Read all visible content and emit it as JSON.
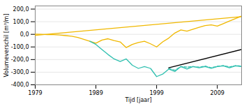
{
  "chart_data": {
    "type": "line",
    "xlabel": "Tijd [jaar]",
    "ylabel": "Volumeverschil [m³/m]",
    "xlim": [
      1979,
      2013
    ],
    "ylim": [
      -400,
      225
    ],
    "xticks": [
      1979,
      1989,
      1999,
      2009
    ],
    "yticks": [
      {
        "value": -400,
        "label": "-400,0"
      },
      {
        "value": -300,
        "label": "-300,0"
      },
      {
        "value": -200,
        "label": "-200,0"
      },
      {
        "value": -100,
        "label": "-100,0"
      },
      {
        "value": 0,
        "label": "0,0"
      },
      {
        "value": 100,
        "label": "100,0"
      },
      {
        "value": 200,
        "label": "200,0"
      }
    ],
    "grid": true,
    "series": [
      {
        "color": "#f0b800",
        "line_style": "solid",
        "x": [
          1979,
          1980,
          1981,
          1982,
          1983,
          1984,
          1985,
          1986,
          1987,
          1988,
          1989,
          1990,
          1991,
          1992,
          1993,
          1994,
          1995,
          1996,
          1997,
          1998,
          1999,
          2000,
          2001,
          2002,
          2003,
          2004,
          2005,
          2006,
          2007,
          2008,
          2009,
          2010,
          2011,
          2012,
          2013
        ],
        "values": [
          2,
          0,
          -2,
          -3,
          -5,
          -10,
          -15,
          -25,
          -40,
          -55,
          -70,
          -45,
          -35,
          -50,
          -60,
          -105,
          -80,
          -65,
          -55,
          -75,
          -100,
          -60,
          -30,
          10,
          35,
          25,
          40,
          55,
          70,
          75,
          65,
          85,
          105,
          125,
          145
        ]
      },
      {
        "color": "#f0b800",
        "line_style": "solid",
        "x": [
          1979,
          2013
        ],
        "values": [
          -8,
          140
        ]
      },
      {
        "color": "#30c0b0",
        "line_style": "solid",
        "x": [
          1988,
          1989,
          1990,
          1991,
          1992,
          1993,
          1994,
          1995,
          1996,
          1997,
          1998,
          1999,
          2000,
          2001
        ],
        "values": [
          -55,
          -80,
          -120,
          -160,
          -195,
          -215,
          -195,
          -245,
          -270,
          -255,
          -270,
          -335,
          -315,
          -275
        ]
      },
      {
        "color": "#30c0b0",
        "line_style": "solid",
        "x": [
          2001,
          2002,
          2003,
          2004,
          2005,
          2006,
          2007,
          2008,
          2009,
          2010,
          2011,
          2012,
          2013
        ],
        "values": [
          -275,
          -295,
          -255,
          -275,
          -255,
          -265,
          -255,
          -270,
          -255,
          -250,
          -265,
          -250,
          -255
        ]
      },
      {
        "color": "#30c0b0",
        "line_style": "dashed",
        "x": [
          2001,
          2002,
          2003,
          2004,
          2005,
          2006,
          2007,
          2008,
          2009,
          2010,
          2011,
          2012,
          2013
        ],
        "values": [
          -270,
          -285,
          -255,
          -260,
          -255,
          -260,
          -252,
          -265,
          -253,
          -248,
          -258,
          -248,
          -252
        ]
      },
      {
        "color": "#000000",
        "line_style": "solid",
        "x": [
          2001,
          2013
        ],
        "values": [
          -265,
          -120
        ]
      }
    ]
  }
}
